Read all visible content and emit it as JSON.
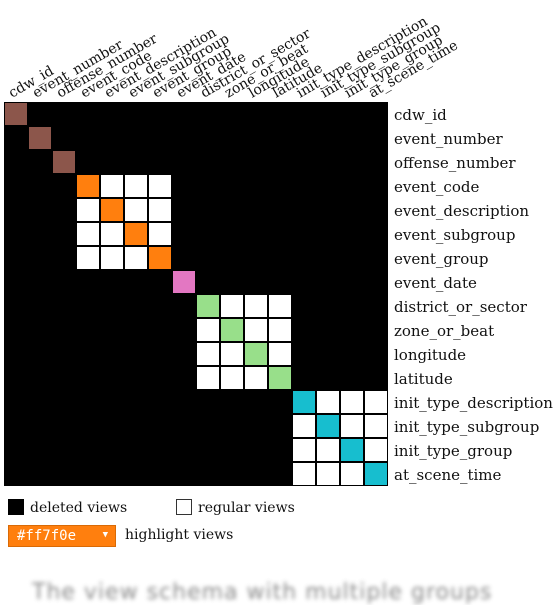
{
  "matrix": {
    "fields": [
      "cdw_id",
      "event_number",
      "offense_number",
      "event_code",
      "event_description",
      "event_subgroup",
      "event_group",
      "event_date",
      "district_or_sector",
      "zone_or_beat",
      "longitude",
      "latitude",
      "init_type_description",
      "init_type_subgroup",
      "init_type_group",
      "at_scene_time"
    ],
    "groups": [
      {
        "start": 0,
        "end": 0,
        "color": "#8c564b"
      },
      {
        "start": 1,
        "end": 1,
        "color": "#8c564b"
      },
      {
        "start": 2,
        "end": 2,
        "color": "#8c564b"
      },
      {
        "start": 3,
        "end": 6,
        "color": "#ff7f0e"
      },
      {
        "start": 7,
        "end": 7,
        "color": "#e377c2"
      },
      {
        "start": 8,
        "end": 11,
        "color": "#98df8a"
      },
      {
        "start": 12,
        "end": 15,
        "color": "#17becf"
      }
    ],
    "deleted_color": "#000000",
    "regular_color": "#ffffff"
  },
  "legend": {
    "deleted_label": "deleted views",
    "regular_label": "regular views",
    "highlight_label": "highlight views",
    "highlight_value": "#ff7f0e"
  },
  "caption_fragment": "The view schema with multiple groups"
}
